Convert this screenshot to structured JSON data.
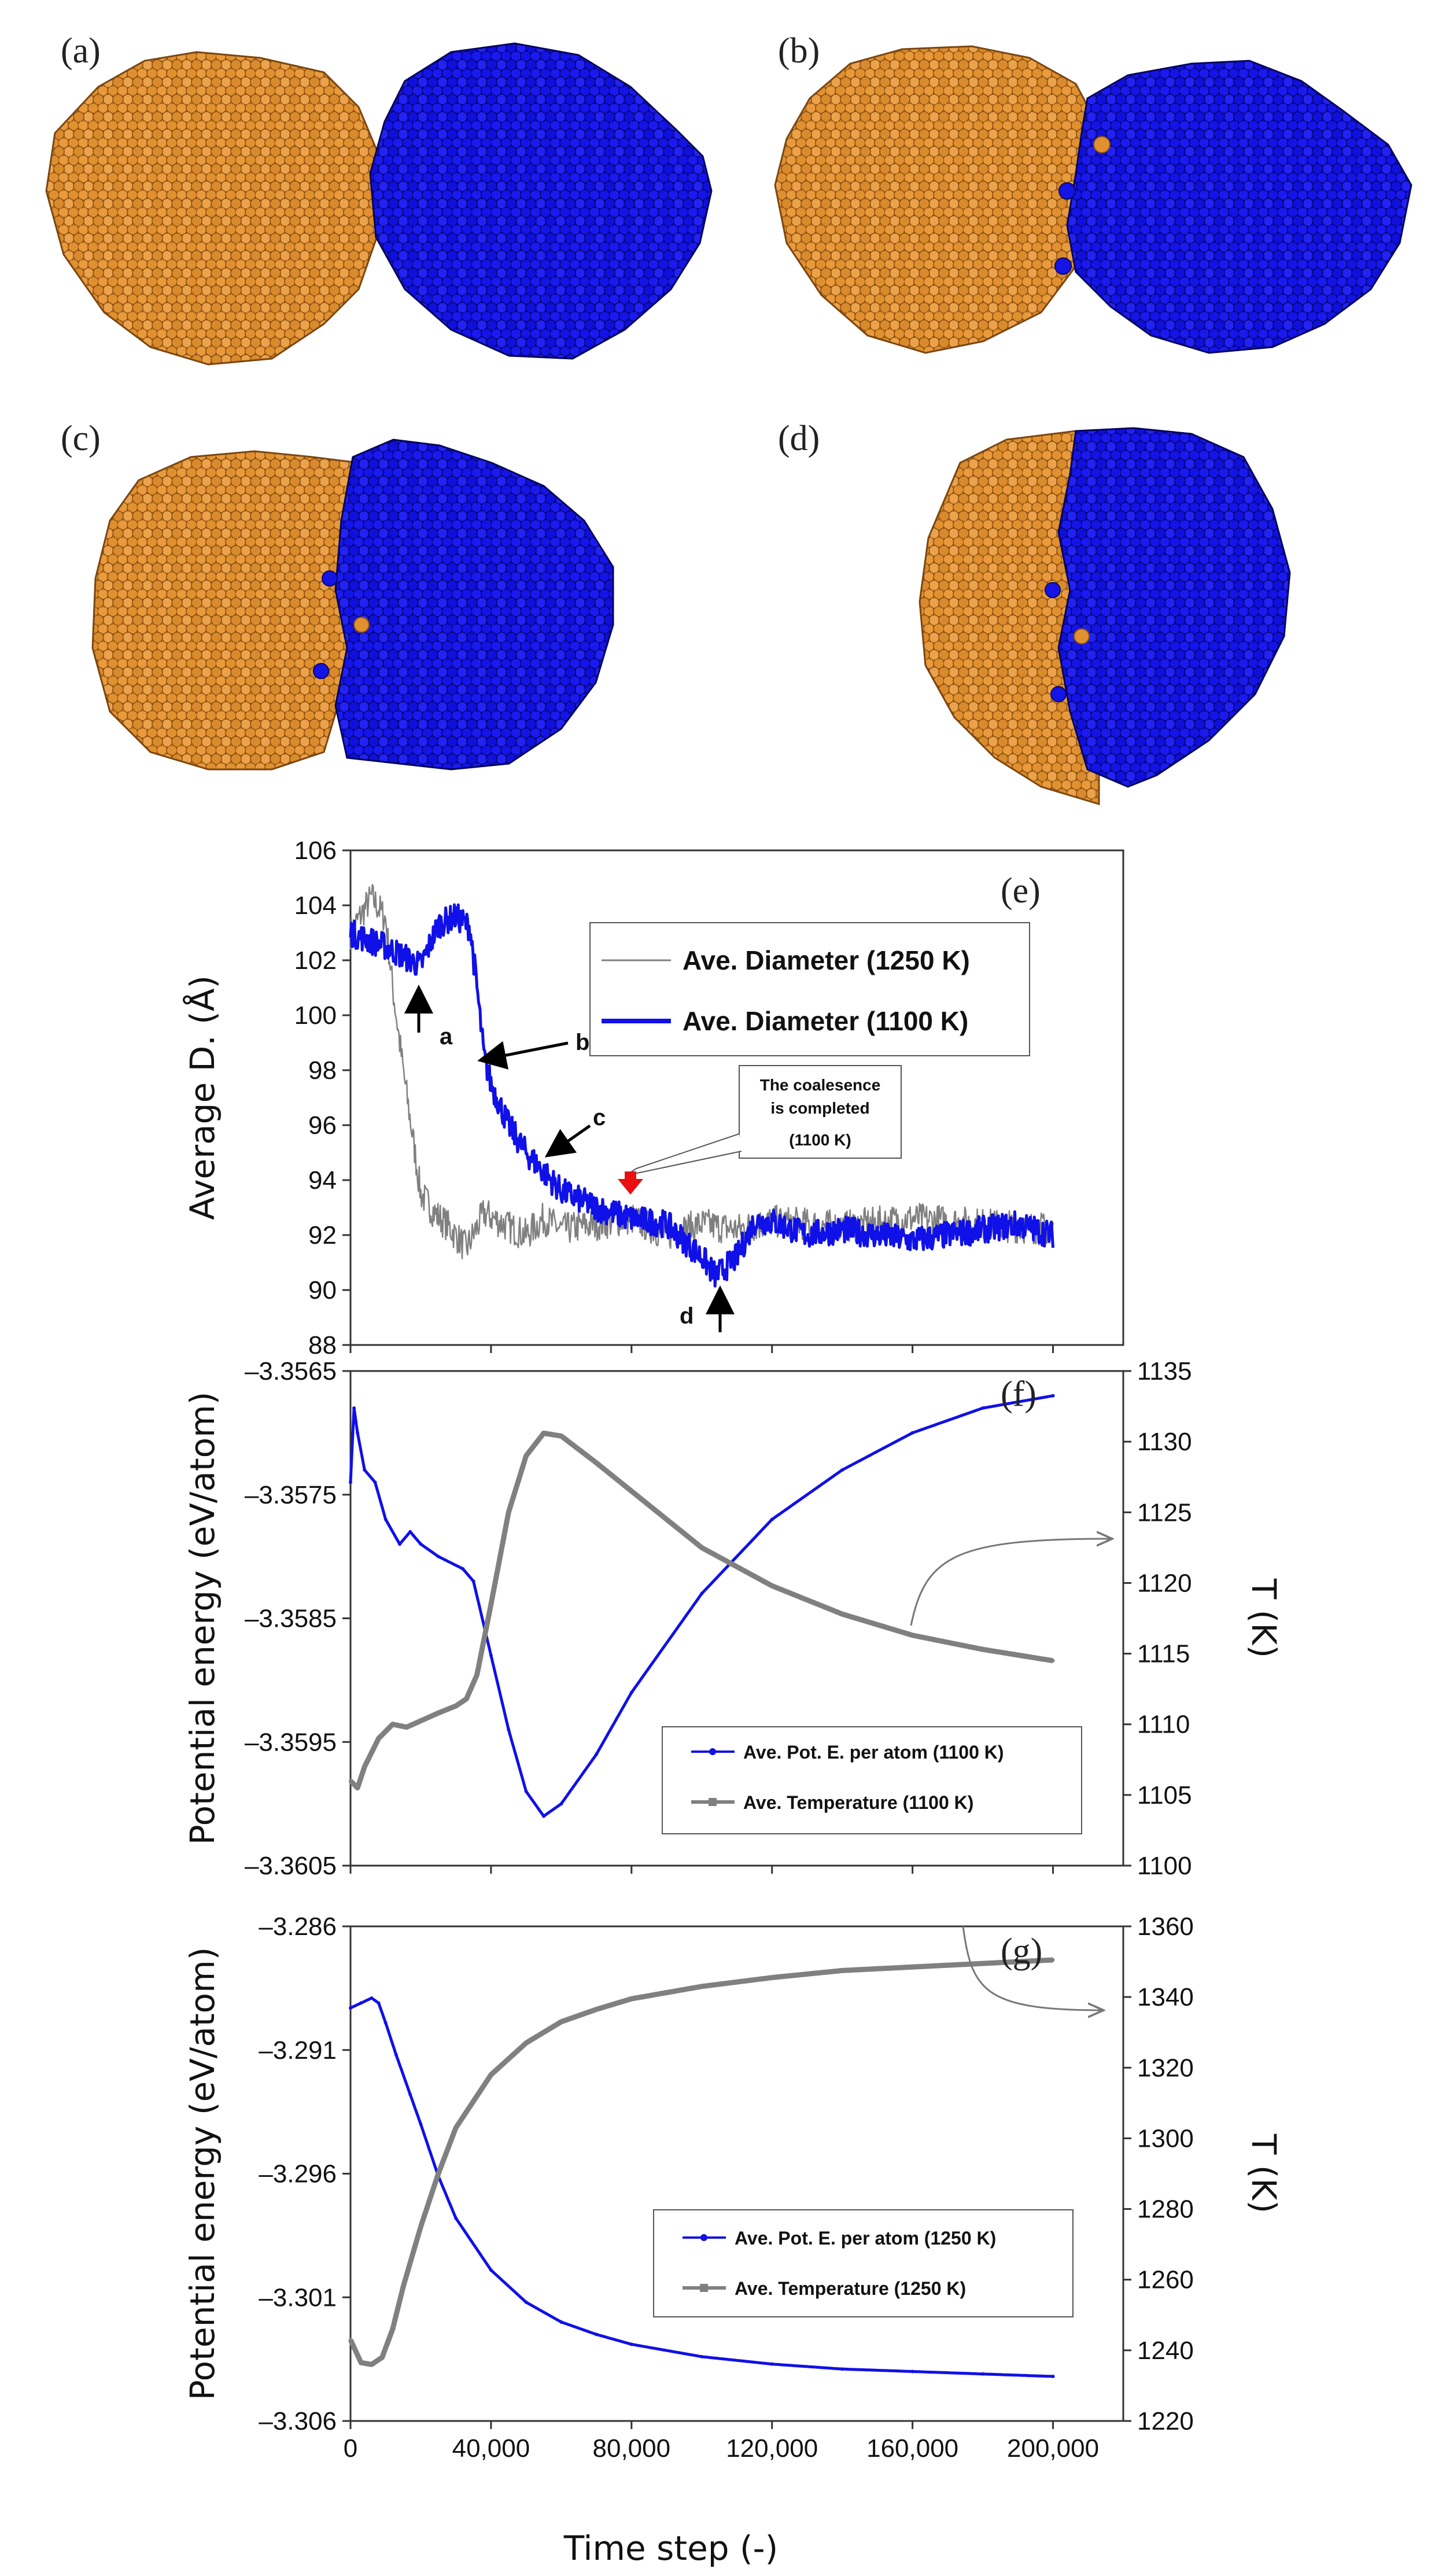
{
  "colors": {
    "orange": "#d9882b",
    "blue": "#1010e8",
    "gray": "#808080",
    "red": "#e81010"
  },
  "panel_labels": {
    "a": "(a)",
    "b": "(b)",
    "c": "(c)",
    "d": "(d)"
  },
  "xaxis": {
    "label": "Time step (-)",
    "ticks": [
      0,
      40000,
      80000,
      120000,
      160000,
      200000
    ],
    "tick_labels": [
      "0",
      "40,000",
      "80,000",
      "120,000",
      "160,000",
      "200,000"
    ],
    "range": [
      0,
      220000
    ]
  },
  "chart_data": [
    {
      "type": "line",
      "panel": "(e)",
      "ylabel": "Average D. (Å)",
      "ylim": [
        88,
        106
      ],
      "yticks": [
        "88",
        "90",
        "92",
        "94",
        "96",
        "98",
        "100",
        "102",
        "104",
        "106"
      ],
      "series": [
        {
          "name": "Ave. Diameter (1250 K)",
          "color": "#808080",
          "x": [
            0,
            6000,
            10000,
            12000,
            15000,
            18000,
            20000,
            24000,
            28000,
            33000,
            38000,
            45000,
            50000,
            55000,
            60000,
            70000,
            80000,
            90000,
            100000,
            110000,
            120000,
            140000,
            160000,
            180000,
            200000
          ],
          "y": [
            103,
            104.3,
            103.5,
            101,
            98,
            95.3,
            93.5,
            92.8,
            92.3,
            91.5,
            92.8,
            92.3,
            92,
            92.6,
            92.2,
            92.4,
            92.6,
            92,
            92.4,
            92.2,
            92.5,
            92.3,
            92.6,
            92.4,
            92.2
          ],
          "noise": 0.6
        },
        {
          "name": "Ave. Diameter (1100 K)",
          "color": "#1010e8",
          "x": [
            0,
            10000,
            20000,
            25000,
            30000,
            34000,
            36000,
            38000,
            40000,
            45000,
            50000,
            55000,
            60000,
            70000,
            80000,
            90000,
            100000,
            104000,
            110000,
            115000,
            120000,
            130000,
            140000,
            150000,
            160000,
            170000,
            180000,
            190000,
            200000
          ],
          "y": [
            103,
            102.5,
            101.8,
            103.3,
            103.6,
            103.2,
            101,
            98.5,
            97.5,
            96,
            95,
            94.3,
            93.6,
            93,
            92.6,
            92.4,
            91.2,
            90.5,
            91.2,
            92.5,
            92.5,
            92,
            92.2,
            92,
            91.8,
            92,
            92.2,
            92.4,
            92
          ],
          "noise": 0.5
        }
      ],
      "legend": [
        "Ave. Diameter (1250 K)",
        "Ave. Diameter (1100 K)"
      ],
      "annotations": {
        "a": "a",
        "b": "b",
        "c": "c",
        "d": "d",
        "callout_line1": "The coalesence",
        "callout_line2": "is completed",
        "callout_line3": "(1100 K)"
      }
    },
    {
      "type": "line",
      "panel": "(f)",
      "ylabel": "Potential energy (eV/atom)",
      "y2label": "T (K)",
      "ylim": [
        -3.3605,
        -3.3565
      ],
      "y2lim": [
        1100,
        1135
      ],
      "yticks": [
        "-3.3565",
        "-3.3575",
        "-3.3585",
        "-3.3595",
        "-3.3605"
      ],
      "y2ticks": [
        "1135",
        "1130",
        "1125",
        "1120",
        "1115",
        "1110",
        "1105",
        "1100"
      ],
      "series": [
        {
          "name": "Ave. Pot. E. per atom (1100 K)",
          "color": "#1010e8",
          "axis": "left",
          "x": [
            0,
            1000,
            2000,
            4000,
            7000,
            10000,
            14000,
            17000,
            20000,
            25000,
            32000,
            35000,
            40000,
            45000,
            50000,
            55000,
            60000,
            70000,
            80000,
            100000,
            120000,
            140000,
            160000,
            180000,
            200000
          ],
          "y": [
            -3.3574,
            -3.3568,
            -3.357,
            -3.3573,
            -3.3574,
            -3.3577,
            -3.3579,
            -3.3578,
            -3.3579,
            -3.358,
            -3.3581,
            -3.3582,
            -3.3588,
            -3.3594,
            -3.3599,
            -3.3601,
            -3.36,
            -3.3596,
            -3.3591,
            -3.3583,
            -3.3577,
            -3.3573,
            -3.357,
            -3.3568,
            -3.3567
          ]
        },
        {
          "name": "Ave. Temperature (1100 K)",
          "color": "#808080",
          "axis": "right",
          "x": [
            0,
            2000,
            4000,
            8000,
            12000,
            16000,
            25000,
            30000,
            33000,
            36000,
            40000,
            45000,
            50000,
            55000,
            60000,
            70000,
            80000,
            100000,
            120000,
            140000,
            160000,
            180000,
            200000
          ],
          "y": [
            1106,
            1105.5,
            1107,
            1109,
            1110,
            1109.8,
            1110.8,
            1111.3,
            1111.8,
            1113.5,
            1118.5,
            1125,
            1129,
            1130.6,
            1130.4,
            1128.5,
            1126.5,
            1122.5,
            1119.8,
            1117.8,
            1116.3,
            1115.3,
            1114.5
          ]
        }
      ],
      "legend": [
        "Ave. Pot. E. per atom (1100 K)",
        "Ave. Temperature (1100 K)"
      ]
    },
    {
      "type": "line",
      "panel": "(g)",
      "ylabel": "Potential energy (eV/atom)",
      "y2label": "T (K)",
      "ylim": [
        -3.306,
        -3.286
      ],
      "y2lim": [
        1220,
        1360
      ],
      "yticks": [
        "-3.286",
        "-3.291",
        "-3.296",
        "-3.301",
        "-3.306"
      ],
      "y2ticks": [
        "1360",
        "1340",
        "1320",
        "1300",
        "1280",
        "1260",
        "1240",
        "1220"
      ],
      "series": [
        {
          "name": "Ave. Pot. E. per atom (1250 K)",
          "color": "#1010e8",
          "axis": "left",
          "x": [
            0,
            3000,
            6000,
            8000,
            10000,
            13000,
            17000,
            20000,
            25000,
            30000,
            40000,
            50000,
            60000,
            70000,
            80000,
            100000,
            120000,
            140000,
            160000,
            180000,
            200000
          ],
          "y": [
            -3.2893,
            -3.2891,
            -3.2889,
            -3.2891,
            -3.2899,
            -3.2912,
            -3.2928,
            -3.294,
            -3.2961,
            -3.2978,
            -3.2999,
            -3.3012,
            -3.302,
            -3.3025,
            -3.3029,
            -3.3034,
            -3.3037,
            -3.3039,
            -3.304,
            -3.3041,
            -3.3042
          ]
        },
        {
          "name": "Ave. Temperature (1250 K)",
          "color": "#808080",
          "axis": "right",
          "x": [
            0,
            3000,
            6000,
            9000,
            12000,
            15000,
            20000,
            25000,
            30000,
            40000,
            50000,
            60000,
            70000,
            80000,
            100000,
            120000,
            140000,
            160000,
            180000,
            200000
          ],
          "y": [
            1243,
            1236.5,
            1236,
            1238,
            1246,
            1258,
            1275,
            1290,
            1303,
            1318,
            1327,
            1333,
            1336.5,
            1339.5,
            1343,
            1345.5,
            1347.5,
            1348.5,
            1349.5,
            1350.5
          ]
        }
      ],
      "legend": [
        "Ave. Pot. E. per atom (1250 K)",
        "Ave. Temperature (1250 K)"
      ]
    }
  ]
}
